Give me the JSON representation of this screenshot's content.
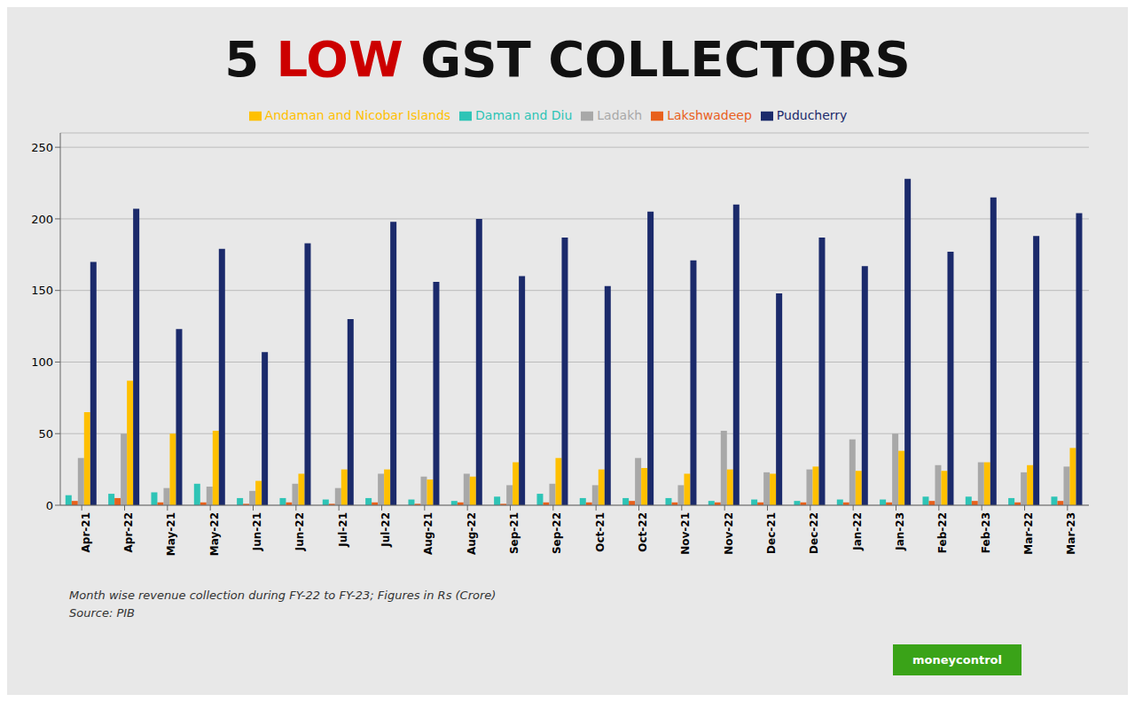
{
  "chart_data": {
    "type": "bar",
    "title": "5 LOW GST COLLECTORS",
    "subtitle": [
      "Month wise revenue collection during FY-22 to FY-23; Figures in Rs (Crore)",
      "Source: PIB"
    ],
    "annotations": [
      "moneycontrol"
    ],
    "categories": [
      "Apr-21",
      "Apr-22",
      "May-21",
      "May-22",
      "Jun-21",
      "Jun-22",
      "Jul-21",
      "Jul-22",
      "Aug-21",
      "Aug-22",
      "Sep-21",
      "Sep-22",
      "Oct-21",
      "Oct-22",
      "Nov-21",
      "Nov-22",
      "Dec-21",
      "Dec-22",
      "Jan-22",
      "Jan-23",
      "Feb-22",
      "Feb-23",
      "Mar-22",
      "Mar-23"
    ],
    "series": [
      {
        "name": "Daman and Diu",
        "color": "#2EC4B6",
        "values": [
          7,
          8,
          9,
          15,
          5,
          5,
          4,
          5,
          4,
          3,
          6,
          8,
          5,
          5,
          5,
          3,
          4,
          3,
          4,
          4,
          6,
          6,
          5,
          6
        ]
      },
      {
        "name": "Lakshwadeep",
        "color": "#E8601C",
        "values": [
          3,
          5,
          2,
          2,
          1,
          2,
          1,
          2,
          1,
          2,
          1,
          2,
          2,
          3,
          2,
          2,
          2,
          2,
          2,
          2,
          3,
          3,
          2,
          3
        ]
      },
      {
        "name": "Ladakh",
        "color": "#A8A8A8",
        "values": [
          33,
          50,
          12,
          13,
          10,
          15,
          12,
          22,
          20,
          22,
          14,
          15,
          14,
          33,
          14,
          52,
          23,
          25,
          46,
          50,
          28,
          30,
          23,
          27
        ]
      },
      {
        "name": "Andaman and Nicobar Islands",
        "color": "#FFC000",
        "values": [
          65,
          87,
          50,
          52,
          17,
          22,
          25,
          25,
          18,
          20,
          30,
          33,
          25,
          26,
          22,
          25,
          22,
          27,
          24,
          38,
          24,
          30,
          28,
          40
        ]
      },
      {
        "name": "Puducherry",
        "color": "#1B2A6B",
        "values": [
          170,
          207,
          123,
          179,
          107,
          183,
          130,
          198,
          156,
          200,
          160,
          187,
          153,
          205,
          171,
          210,
          148,
          187,
          167,
          228,
          177,
          215,
          188,
          204
        ]
      }
    ],
    "ylim": [
      0,
      260
    ],
    "yticks": [
      0,
      50,
      100,
      150,
      200,
      250
    ],
    "grid": true,
    "legend": "top"
  }
}
